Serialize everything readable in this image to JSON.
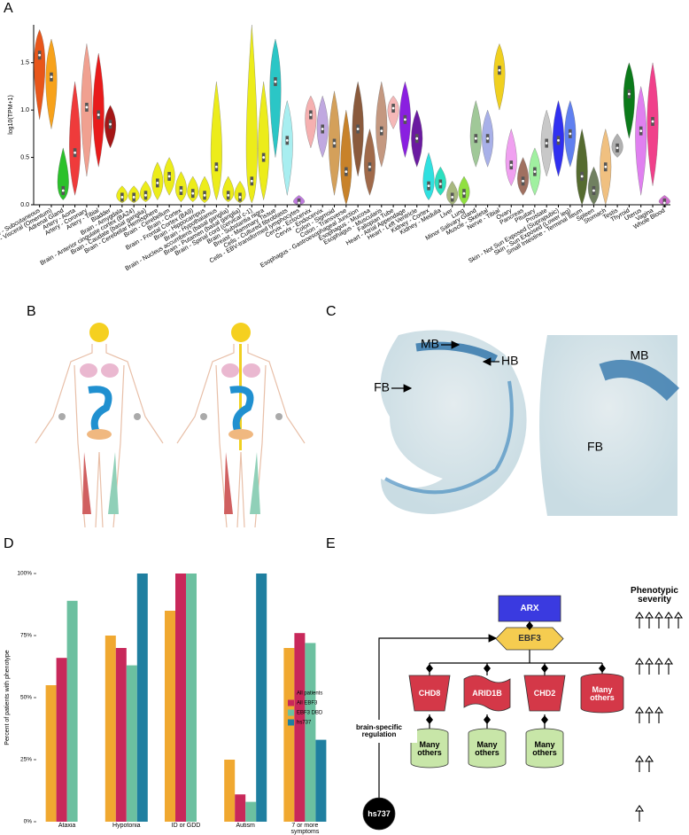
{
  "panel_labels": [
    "A",
    "B",
    "C",
    "D",
    "E"
  ],
  "chart_data": [
    {
      "type": "violin",
      "y_label": "log10(TPM+1)",
      "categories": [
        "Adipose - Subcutaneous",
        "Adipose - Visceral (Omentum)",
        "Adrenal Gland",
        "Artery - Aorta",
        "Artery - Coronary",
        "Artery - Tibial",
        "Bladder",
        "Brain - Amygdala",
        "Brain - Anterior cingulate cortex (BA24)",
        "Brain - Caudate (basal ganglia)",
        "Brain - Cerebellar Hemisphere",
        "Brain - Cerebellum",
        "Brain - Cortex",
        "Brain - Frontal Cortex (BA9)",
        "Brain - Hippocampus",
        "Brain - Hypothalamus",
        "Brain - Nucleus accumbens (basal ganglia)",
        "Brain - Putamen (basal ganglia)",
        "Brain - Spinal cord (cervical c-1)",
        "Brain - Substantia nigra",
        "Breast - Mammary Tissue",
        "Cells - Cultured fibroblasts",
        "Cells - EBV-transformed lymphocytes",
        "Cervix - Ectocervix",
        "Cervix - Endocervix",
        "Colon - Sigmoid",
        "Colon - Transverse",
        "Esophagus - Gastroesophageal Junction",
        "Esophagus - Mucosa",
        "Esophagus - Muscularis",
        "Fallopian Tube",
        "Heart - Atrial Appendage",
        "Heart - Left Ventricle",
        "Kidney - Cortex",
        "Kidney - Medulla",
        "Liver",
        "Lung",
        "Minor Salivary Gland",
        "Muscle - Skeletal",
        "Nerve - Tibial",
        "Ovary",
        "Pancreas",
        "Pituitary",
        "Prostate",
        "Skin - Not Sun Exposed (Suprapubic)",
        "Skin - Sun Exposed (Lower leg)",
        "Small Intestine - Terminal Ileum",
        "Spleen",
        "Stomach",
        "Testis",
        "Thyroid",
        "Uterus",
        "Vagina",
        "Whole Blood"
      ],
      "medians": [
        1.58,
        1.35,
        0.15,
        0.55,
        1.03,
        0.95,
        0.85,
        0.08,
        0.08,
        0.1,
        0.23,
        0.3,
        0.15,
        0.12,
        0.1,
        0.4,
        0.1,
        0.08,
        0.25,
        0.5,
        1.3,
        0.68,
        0.02,
        0.95,
        0.8,
        0.65,
        0.35,
        0.8,
        0.4,
        0.78,
        1.02,
        0.9,
        0.7,
        0.2,
        0.22,
        0.08,
        0.12,
        0.7,
        0.7,
        1.42,
        0.42,
        0.25,
        0.35,
        0.65,
        0.68,
        0.75,
        0.3,
        0.15,
        0.4,
        0.6,
        1.17,
        0.78,
        0.88,
        0.02
      ],
      "mins": [
        0.9,
        0.8,
        0.05,
        0.1,
        0.3,
        0.4,
        0.6,
        0.02,
        0.02,
        0.03,
        0.05,
        0.1,
        0.03,
        0.03,
        0.02,
        0.05,
        0.03,
        0.02,
        0.02,
        0.05,
        0.5,
        0.1,
        0,
        0.6,
        0.5,
        0.1,
        0,
        0.3,
        0.1,
        0.4,
        0.8,
        0.5,
        0.4,
        0.05,
        0.1,
        0,
        0,
        0.4,
        0.4,
        1.0,
        0.2,
        0.1,
        0.1,
        0.3,
        0.3,
        0.4,
        0,
        0,
        0,
        0.5,
        0.7,
        0.1,
        0.2,
        0
      ],
      "maxs": [
        1.85,
        1.75,
        0.6,
        1.3,
        1.7,
        1.6,
        1.05,
        0.2,
        0.2,
        0.25,
        0.45,
        0.5,
        0.35,
        0.3,
        0.3,
        1.3,
        0.3,
        0.25,
        1.9,
        1.3,
        1.75,
        1.1,
        0.1,
        1.15,
        1.15,
        1.2,
        1.0,
        1.3,
        0.8,
        1.3,
        1.15,
        1.3,
        1.0,
        0.55,
        0.4,
        0.25,
        0.3,
        1.1,
        1.0,
        1.7,
        0.8,
        0.5,
        0.6,
        1.0,
        1.1,
        1.1,
        0.8,
        0.4,
        0.8,
        0.75,
        1.5,
        1.25,
        1.5,
        0.1
      ],
      "colors": [
        "#e8561a",
        "#f7a21b",
        "#2bc12b",
        "#ef3b3b",
        "#f0a090",
        "#e81b1b",
        "#a51616",
        "#ecec1a",
        "#ecec1a",
        "#ecec1a",
        "#ecec1a",
        "#ecec1a",
        "#ecec1a",
        "#ecec1a",
        "#ecec1a",
        "#ecec1a",
        "#ecec1a",
        "#ecec1a",
        "#ecec1a",
        "#ecec1a",
        "#2bc6c6",
        "#a8eef0",
        "#c07ae0",
        "#f5b0b0",
        "#c0a8e0",
        "#d4a05a",
        "#c8822a",
        "#8a5a3c",
        "#a06a4a",
        "#c49880",
        "#f5b8b8",
        "#8a20e0",
        "#6a1aa0",
        "#30e0e0",
        "#2ce0c0",
        "#a8b880",
        "#90e040",
        "#a0c898",
        "#a8b0e8",
        "#f0d020",
        "#f0a0f0",
        "#a07060",
        "#a0f0a0",
        "#c8c8c8",
        "#3030f0",
        "#6080f0",
        "#556b2f",
        "#708060",
        "#f0c080",
        "#b0b0b0",
        "#0b7a1a",
        "#e080f0",
        "#f0408a",
        "#d070d0"
      ],
      "ylim": [
        0,
        1.9
      ],
      "yticks": [
        {
          "value": 0,
          "label": "0.0"
        },
        {
          "value": 0.5,
          "label": "0.5"
        },
        {
          "value": 1,
          "label": "1.0"
        },
        {
          "value": 1.5,
          "label": "1.5"
        }
      ]
    },
    {
      "type": "bar",
      "y_label": "Percent of patients with phenotype",
      "categories": [
        "Ataxia",
        "Hypotonia",
        "ID or GDD",
        "Autism",
        "7 or more symptoms"
      ],
      "series": [
        {
          "name": "All patients",
          "color": "#f0a830",
          "values": [
            55,
            75,
            85,
            25,
            70
          ]
        },
        {
          "name": "All EBF3",
          "color": "#c8285a",
          "values": [
            66,
            70,
            100,
            11,
            76
          ]
        },
        {
          "name": "EBF3 DBD",
          "color": "#6cc0a0",
          "values": [
            89,
            63,
            100,
            8,
            72
          ]
        },
        {
          "name": "hs737",
          "color": "#1f7fa0",
          "values": [
            null,
            100,
            null,
            100,
            33
          ]
        }
      ],
      "ylim": [
        0,
        100
      ],
      "yticks": [
        {
          "value": 0,
          "label": "0%"
        },
        {
          "value": 25,
          "label": "25%"
        },
        {
          "value": 50,
          "label": "50%"
        },
        {
          "value": 75,
          "label": "75%"
        },
        {
          "value": 100,
          "label": "100%"
        }
      ],
      "legend": "right"
    }
  ],
  "embryo_labels": [
    "MB",
    "HB",
    "FB",
    "MB",
    "FB"
  ],
  "diagram": {
    "nodes": [
      {
        "label": "ARX"
      },
      {
        "label": "EBF3"
      },
      {
        "label": "CHD8"
      },
      {
        "label": "ARID1B"
      },
      {
        "label": "CHD2"
      },
      {
        "label": "Many others"
      },
      {
        "label": "Many others"
      },
      {
        "label": "Many others"
      },
      {
        "label": "Many others"
      },
      {
        "label": "hs737"
      }
    ],
    "side_label": "brain-specific regulation",
    "severity_title": "Phenotypic severity",
    "severity_levels": [
      5,
      4,
      3,
      2,
      1
    ]
  }
}
